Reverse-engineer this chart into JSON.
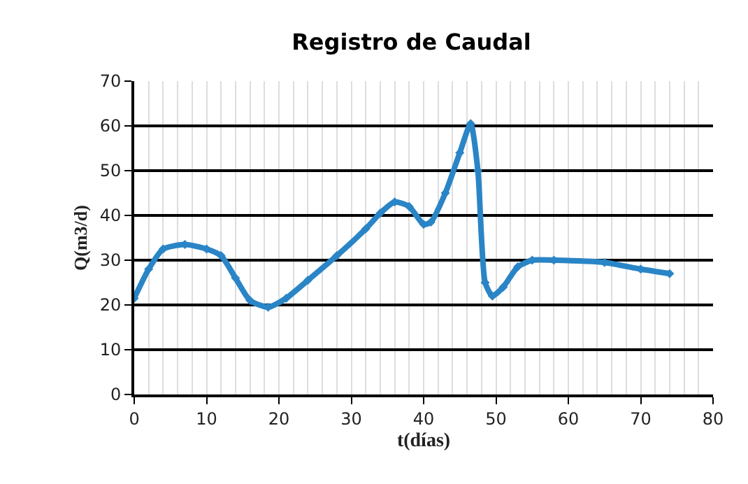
{
  "chart_data": {
    "type": "line",
    "title": "Registro de Caudal",
    "xlabel": "t(días)",
    "ylabel": "Q(m3/d)",
    "x": [
      0,
      2,
      4,
      7,
      10,
      12,
      14,
      16,
      18.5,
      21,
      24,
      28,
      32,
      34,
      36,
      38,
      40,
      41,
      43,
      45,
      46.5,
      47.5,
      48.5,
      49.5,
      51,
      53,
      55,
      58,
      65,
      70,
      74
    ],
    "series": [
      {
        "color": "#2a85c6",
        "values": [
          21.5,
          28,
          32.5,
          33.5,
          32.5,
          31,
          26,
          21,
          19.5,
          21.5,
          25.5,
          31,
          37,
          40.5,
          43,
          42,
          38,
          38.5,
          45,
          54,
          60.5,
          50,
          25,
          22,
          24,
          28.5,
          30,
          30,
          29.5,
          28,
          27
        ]
      }
    ],
    "xlim": [
      0,
      80
    ],
    "xticks": [
      0,
      10,
      20,
      30,
      40,
      50,
      60,
      70,
      80
    ],
    "ylim": [
      0,
      70
    ],
    "yticks": [
      0,
      10,
      20,
      30,
      40,
      50,
      60,
      70
    ],
    "grid": true,
    "marker": "diamond",
    "line_style": "solid"
  }
}
